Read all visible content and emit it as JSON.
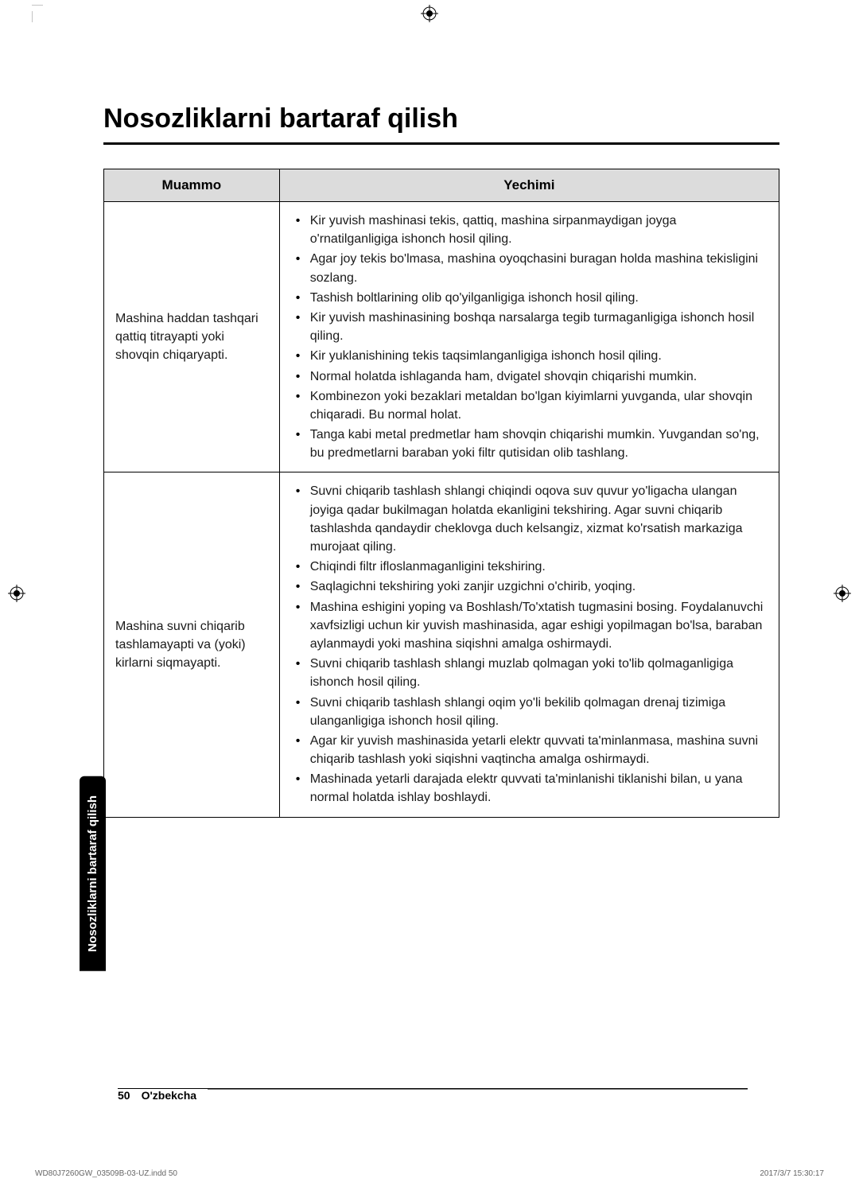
{
  "title": "Nosozliklarni bartaraf qilish",
  "table": {
    "headers": {
      "problem": "Muammo",
      "solution": "Yechimi"
    },
    "rows": [
      {
        "problem": "Mashina haddan tashqari qattiq titrayapti yoki shovqin chiqaryapti.",
        "solutions": [
          "Kir yuvish mashinasi tekis, qattiq, mashina sirpanmaydigan joyga o'rnatilganligiga ishonch hosil qiling.",
          "Agar joy tekis bo'lmasa, mashina oyoqchasini buragan holda mashina tekisligini sozlang.",
          "Tashish boltlarining olib qo'yilganligiga ishonch hosil qiling.",
          "Kir yuvish mashinasining boshqa narsalarga tegib turmaganligiga ishonch hosil qiling.",
          "Kir yuklanishining tekis taqsimlanganligiga ishonch hosil qiling.",
          "Normal holatda ishlaganda ham, dvigatel shovqin chiqarishi mumkin.",
          "Kombinezon yoki bezaklari metaldan bo'lgan kiyimlarni yuvganda, ular shovqin chiqaradi. Bu normal holat.",
          "Tanga kabi metal predmetlar ham shovqin chiqarishi mumkin. Yuvgandan so'ng, bu predmetlarni baraban yoki filtr qutisidan olib tashlang."
        ]
      },
      {
        "problem": "Mashina suvni chiqarib tashlamayapti va (yoki) kirlarni siqmayapti.",
        "solutions": [
          "Suvni chiqarib tashlash shlangi chiqindi oqova suv quvur yo'ligacha ulangan joyiga qadar bukilmagan holatda ekanligini tekshiring. Agar suvni chiqarib tashlashda qandaydir cheklovga duch kelsangiz, xizmat ko'rsatish markaziga murojaat qiling.",
          "Chiqindi filtr ifloslanmaganligini tekshiring.",
          "Saqlagichni tekshiring yoki zanjir uzgichni o'chirib, yoqing.",
          "Mashina eshigini yoping va Boshlash/To'xtatish tugmasini bosing. Foydalanuvchi xavfsizligi uchun kir yuvish mashinasida, agar eshigi yopilmagan bo'lsa, baraban aylanmaydi yoki mashina siqishni amalga oshirmaydi.",
          "Suvni chiqarib tashlash shlangi muzlab qolmagan yoki to'lib qolmaganligiga ishonch hosil qiling.",
          "Suvni chiqarib tashlash shlangi oqim yo'li bekilib qolmagan drenaj tizimiga ulanganligiga ishonch hosil qiling.",
          "Agar kir yuvish mashinasida yetarli elektr quvvati ta'minlanmasa, mashina suvni chiqarib tashlash yoki siqishni vaqtincha amalga oshirmaydi.",
          "Mashinada yetarli darajada elektr quvvati ta'minlanishi tiklanishi bilan, u yana normal holatda ishlay boshlaydi."
        ]
      }
    ]
  },
  "side_tab": "Nosozliklarni bartaraf qilish",
  "footer": {
    "page_num": "50",
    "language": "O'zbekcha"
  },
  "print_footer": {
    "file": "WD80J7260GW_03509B-03-UZ.indd   50",
    "timestamp": "2017/3/7   15:30:17"
  }
}
